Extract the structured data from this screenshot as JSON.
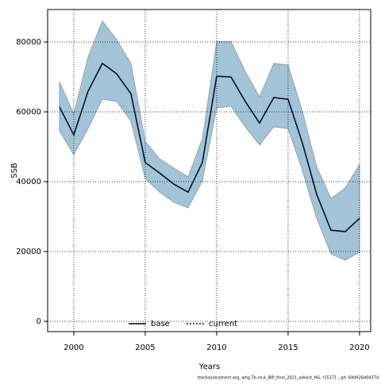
{
  "chart_data": {
    "type": "line",
    "xlabel": "Years",
    "ylabel": "SSB",
    "footnote": "stockassessment.org, whg.7b-ce-k_IBP_final_2021_advice_HG, r15171 , git: 69d926d0437d",
    "x": [
      1999,
      2000,
      2001,
      2002,
      2003,
      2004,
      2005,
      2006,
      2007,
      2008,
      2009,
      2010,
      2011,
      2012,
      2013,
      2014,
      2015,
      2016,
      2017,
      2018,
      2019,
      2020
    ],
    "band": {
      "color": "#a3c3d6",
      "upper": [
        68600,
        59500,
        75700,
        86100,
        80700,
        73900,
        51600,
        46600,
        43900,
        41400,
        52300,
        80200,
        80200,
        71600,
        64300,
        73900,
        73400,
        60200,
        44300,
        35200,
        38200,
        45000
      ],
      "lower": [
        54500,
        47700,
        55200,
        63600,
        63000,
        57300,
        40900,
        37000,
        34100,
        32500,
        40200,
        61100,
        61600,
        55700,
        50500,
        55700,
        55200,
        43200,
        29500,
        19300,
        17500,
        19800
      ]
    },
    "series": [
      {
        "name": "base",
        "color": "#000000",
        "dash": false,
        "values": [
          61400,
          53400,
          65900,
          73900,
          70900,
          65200,
          45500,
          42500,
          39300,
          37000,
          45500,
          70200,
          70000,
          63000,
          56800,
          64100,
          63600,
          51100,
          36400,
          26100,
          25700,
          29500
        ]
      },
      {
        "name": "current",
        "color": "#00205b",
        "dash": true,
        "values": [
          61400,
          53400,
          65900,
          73900,
          70900,
          65200,
          45500,
          42500,
          39300,
          37000,
          45500,
          70200,
          70000,
          63000,
          56800,
          64100,
          63600,
          51100,
          36400,
          26100,
          25700,
          29500
        ]
      }
    ],
    "xlim": [
      1998.17,
      2020.78
    ],
    "xticks": [
      2000,
      2005,
      2010,
      2015,
      2020
    ],
    "ylim": [
      -2955,
      89318
    ],
    "yticks": [
      0,
      20000,
      40000,
      60000,
      80000
    ],
    "grid": true,
    "legend": "bottom"
  }
}
